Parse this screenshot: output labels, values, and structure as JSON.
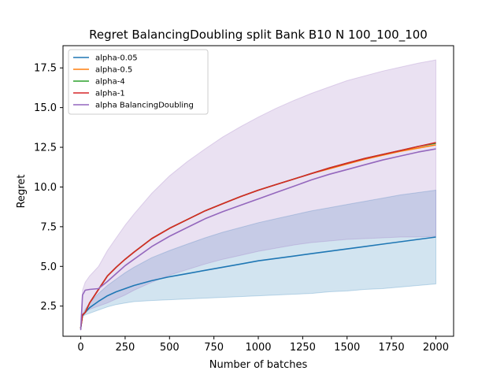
{
  "chart_data": {
    "type": "line",
    "title": "Regret BalancingDoubling split Bank B10 N 100_100_100",
    "xlabel": "Number of batches",
    "ylabel": "Regret",
    "xlim": [
      -100,
      2100
    ],
    "ylim": [
      0.6,
      18.9
    ],
    "xticks": [
      0,
      250,
      500,
      750,
      1000,
      1250,
      1500,
      1750,
      2000
    ],
    "yticks": [
      2.5,
      5.0,
      7.5,
      10.0,
      12.5,
      15.0,
      17.5
    ],
    "ytick_labels": [
      "2.5",
      "5.0",
      "7.5",
      "10.0",
      "12.5",
      "15.0",
      "17.5"
    ],
    "legend_position": "upper-left",
    "grid": false,
    "x": [
      0,
      10,
      25,
      50,
      100,
      150,
      200,
      250,
      300,
      400,
      500,
      600,
      700,
      800,
      900,
      1000,
      1100,
      1200,
      1300,
      1400,
      1500,
      1600,
      1700,
      1800,
      1900,
      2000
    ],
    "series": [
      {
        "name": "alpha-0.05",
        "color": "#1f77b4",
        "values": [
          1.1,
          1.9,
          2.1,
          2.4,
          2.8,
          3.15,
          3.4,
          3.6,
          3.8,
          4.1,
          4.35,
          4.55,
          4.75,
          4.95,
          5.15,
          5.35,
          5.5,
          5.65,
          5.8,
          5.95,
          6.1,
          6.25,
          6.4,
          6.55,
          6.7,
          6.85
        ],
        "band_lower": [
          1.0,
          1.85,
          1.95,
          2.05,
          2.25,
          2.45,
          2.6,
          2.7,
          2.78,
          2.85,
          2.9,
          2.95,
          3.0,
          3.05,
          3.1,
          3.15,
          3.2,
          3.25,
          3.3,
          3.4,
          3.45,
          3.55,
          3.6,
          3.7,
          3.8,
          3.9
        ],
        "band_upper": [
          1.2,
          1.95,
          2.3,
          2.7,
          3.3,
          3.8,
          4.2,
          4.6,
          4.95,
          5.55,
          6.0,
          6.4,
          6.8,
          7.15,
          7.45,
          7.75,
          8.0,
          8.25,
          8.5,
          8.7,
          8.9,
          9.1,
          9.3,
          9.5,
          9.65,
          9.8
        ]
      },
      {
        "name": "alpha-0.5",
        "color": "#ff7f0e",
        "values": [
          1.1,
          1.95,
          2.1,
          2.7,
          3.55,
          4.4,
          4.95,
          5.45,
          5.9,
          6.75,
          7.4,
          7.95,
          8.5,
          8.95,
          9.4,
          9.8,
          10.15,
          10.5,
          10.85,
          11.15,
          11.45,
          11.75,
          12.0,
          12.25,
          12.45,
          12.65
        ]
      },
      {
        "name": "alpha-4",
        "color": "#2ca02c",
        "values": [
          1.1,
          1.95,
          2.1,
          2.7,
          3.55,
          4.4,
          4.95,
          5.45,
          5.9,
          6.75,
          7.4,
          7.95,
          8.5,
          8.95,
          9.4,
          9.8,
          10.15,
          10.5,
          10.85,
          11.2,
          11.5,
          11.8,
          12.05,
          12.3,
          12.55,
          12.75
        ]
      },
      {
        "name": "alpha-1",
        "color": "#d62728",
        "values": [
          1.1,
          1.95,
          2.1,
          2.7,
          3.55,
          4.4,
          4.95,
          5.45,
          5.9,
          6.75,
          7.4,
          7.95,
          8.5,
          8.95,
          9.4,
          9.8,
          10.15,
          10.5,
          10.85,
          11.2,
          11.5,
          11.8,
          12.05,
          12.3,
          12.55,
          12.8
        ]
      },
      {
        "name": "alpha BalancingDoubling",
        "color": "#9467bd",
        "values": [
          1.0,
          3.2,
          3.5,
          3.55,
          3.6,
          4.05,
          4.55,
          5.05,
          5.45,
          6.25,
          6.9,
          7.45,
          8.0,
          8.45,
          8.85,
          9.25,
          9.65,
          10.05,
          10.45,
          10.8,
          11.1,
          11.4,
          11.7,
          11.95,
          12.2,
          12.4
        ],
        "band_lower": [
          0.95,
          2.0,
          2.15,
          2.3,
          2.5,
          2.7,
          2.95,
          3.2,
          3.5,
          4.0,
          4.45,
          4.8,
          5.15,
          5.45,
          5.7,
          5.95,
          6.15,
          6.35,
          6.5,
          6.6,
          6.7,
          6.75,
          6.8,
          6.85,
          6.85,
          6.9
        ],
        "band_upper": [
          1.05,
          3.5,
          4.0,
          4.4,
          5.0,
          6.0,
          6.8,
          7.6,
          8.3,
          9.6,
          10.7,
          11.6,
          12.4,
          13.15,
          13.8,
          14.4,
          14.95,
          15.45,
          15.9,
          16.3,
          16.7,
          17.0,
          17.3,
          17.55,
          17.8,
          18.0
        ]
      }
    ]
  }
}
